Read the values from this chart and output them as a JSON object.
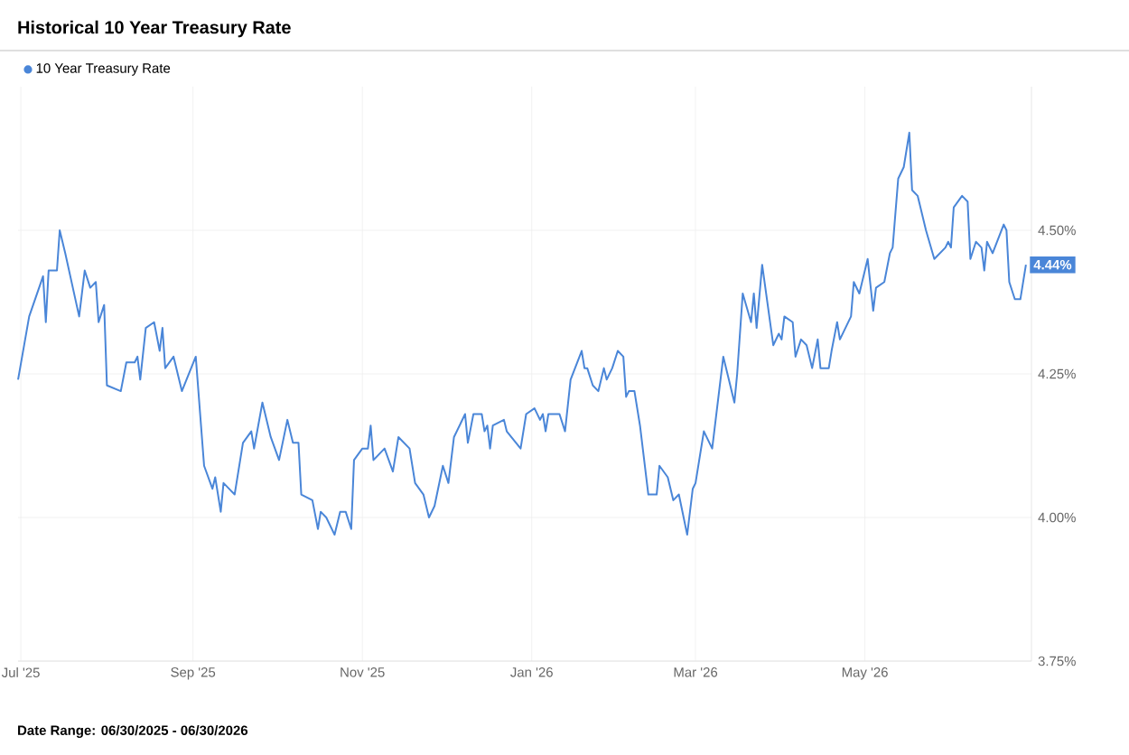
{
  "chart_data": {
    "type": "line",
    "title": "Historical 10 Year Treasury Rate",
    "x": [
      "2025-06-30",
      "2025-07-04",
      "2025-07-09",
      "2025-07-10",
      "2025-07-11",
      "2025-07-14",
      "2025-07-15",
      "2025-07-17",
      "2025-07-22",
      "2025-07-24",
      "2025-07-26",
      "2025-07-28",
      "2025-07-29",
      "2025-07-31",
      "2025-08-01",
      "2025-08-06",
      "2025-08-08",
      "2025-08-11",
      "2025-08-12",
      "2025-08-13",
      "2025-08-15",
      "2025-08-18",
      "2025-08-20",
      "2025-08-21",
      "2025-08-22",
      "2025-08-25",
      "2025-08-28",
      "2025-09-02",
      "2025-09-05",
      "2025-09-08",
      "2025-09-09",
      "2025-09-11",
      "2025-09-12",
      "2025-09-16",
      "2025-09-19",
      "2025-09-22",
      "2025-09-23",
      "2025-09-26",
      "2025-09-29",
      "2025-10-02",
      "2025-10-05",
      "2025-10-07",
      "2025-10-09",
      "2025-10-10",
      "2025-10-14",
      "2025-10-16",
      "2025-10-17",
      "2025-10-19",
      "2025-10-22",
      "2025-10-24",
      "2025-10-26",
      "2025-10-28",
      "2025-10-29",
      "2025-11-01",
      "2025-11-03",
      "2025-11-04",
      "2025-11-05",
      "2025-11-09",
      "2025-11-12",
      "2025-11-14",
      "2025-11-18",
      "2025-11-20",
      "2025-11-23",
      "2025-11-25",
      "2025-11-27",
      "2025-11-30",
      "2025-12-02",
      "2025-12-04",
      "2025-12-08",
      "2025-12-09",
      "2025-12-11",
      "2025-12-14",
      "2025-12-15",
      "2025-12-16",
      "2025-12-17",
      "2025-12-18",
      "2025-12-22",
      "2025-12-23",
      "2025-12-28",
      "2025-12-30",
      "2026-01-02",
      "2026-01-04",
      "2026-01-05",
      "2026-01-06",
      "2026-01-07",
      "2026-01-09",
      "2026-01-11",
      "2026-01-13",
      "2026-01-15",
      "2026-01-19",
      "2026-01-20",
      "2026-01-21",
      "2026-01-23",
      "2026-01-25",
      "2026-01-27",
      "2026-01-28",
      "2026-01-30",
      "2026-02-01",
      "2026-02-03",
      "2026-02-04",
      "2026-02-05",
      "2026-02-07",
      "2026-02-09",
      "2026-02-12",
      "2026-02-15",
      "2026-02-16",
      "2026-02-19",
      "2026-02-21",
      "2026-02-23",
      "2026-02-26",
      "2026-02-28",
      "2026-03-01",
      "2026-03-04",
      "2026-03-07",
      "2026-03-11",
      "2026-03-13",
      "2026-03-15",
      "2026-03-16",
      "2026-03-18",
      "2026-03-21",
      "2026-03-22",
      "2026-03-23",
      "2026-03-25",
      "2026-03-29",
      "2026-03-31",
      "2026-04-01",
      "2026-04-02",
      "2026-04-05",
      "2026-04-06",
      "2026-04-08",
      "2026-04-10",
      "2026-04-12",
      "2026-04-14",
      "2026-04-15",
      "2026-04-18",
      "2026-04-19",
      "2026-04-21",
      "2026-04-22",
      "2026-04-26",
      "2026-04-27",
      "2026-04-29",
      "2026-05-02",
      "2026-05-04",
      "2026-05-05",
      "2026-05-08",
      "2026-05-10",
      "2026-05-11",
      "2026-05-13",
      "2026-05-15",
      "2026-05-17",
      "2026-05-18",
      "2026-05-20",
      "2026-05-23",
      "2026-05-26",
      "2026-05-30",
      "2026-05-31",
      "2026-06-01",
      "2026-06-02",
      "2026-06-05",
      "2026-06-07",
      "2026-06-08",
      "2026-06-10",
      "2026-06-12",
      "2026-06-13",
      "2026-06-14",
      "2026-06-16",
      "2026-06-20",
      "2026-06-21",
      "2026-06-22",
      "2026-06-24",
      "2026-06-26",
      "2026-06-28"
    ],
    "series": [
      {
        "name": "10 Year Treasury Rate",
        "color": "#4a86d8",
        "values": [
          4.24,
          4.35,
          4.42,
          4.34,
          4.43,
          4.43,
          4.5,
          4.46,
          4.35,
          4.43,
          4.4,
          4.41,
          4.34,
          4.37,
          4.23,
          4.22,
          4.27,
          4.27,
          4.28,
          4.24,
          4.33,
          4.34,
          4.29,
          4.33,
          4.26,
          4.28,
          4.22,
          4.28,
          4.09,
          4.05,
          4.07,
          4.01,
          4.06,
          4.04,
          4.13,
          4.15,
          4.12,
          4.2,
          4.14,
          4.1,
          4.17,
          4.13,
          4.13,
          4.04,
          4.03,
          3.98,
          4.01,
          4.0,
          3.97,
          4.01,
          4.01,
          3.98,
          4.1,
          4.12,
          4.12,
          4.16,
          4.1,
          4.12,
          4.08,
          4.14,
          4.12,
          4.06,
          4.04,
          4.0,
          4.02,
          4.09,
          4.06,
          4.14,
          4.18,
          4.13,
          4.18,
          4.18,
          4.15,
          4.16,
          4.12,
          4.16,
          4.17,
          4.15,
          4.12,
          4.18,
          4.19,
          4.17,
          4.18,
          4.15,
          4.18,
          4.18,
          4.18,
          4.15,
          4.24,
          4.29,
          4.26,
          4.26,
          4.23,
          4.22,
          4.26,
          4.24,
          4.26,
          4.29,
          4.28,
          4.21,
          4.22,
          4.22,
          4.16,
          4.04,
          4.04,
          4.09,
          4.07,
          4.03,
          4.04,
          3.97,
          4.05,
          4.06,
          4.15,
          4.12,
          4.28,
          4.24,
          4.2,
          4.25,
          4.39,
          4.34,
          4.39,
          4.33,
          4.44,
          4.3,
          4.32,
          4.31,
          4.35,
          4.34,
          4.28,
          4.31,
          4.3,
          4.26,
          4.31,
          4.26,
          4.26,
          4.29,
          4.34,
          4.31,
          4.35,
          4.41,
          4.39,
          4.45,
          4.36,
          4.4,
          4.41,
          4.46,
          4.47,
          4.59,
          4.61,
          4.67,
          4.57,
          4.56,
          4.5,
          4.45,
          4.47,
          4.48,
          4.47,
          4.54,
          4.56,
          4.55,
          4.45,
          4.48,
          4.47,
          4.43,
          4.48,
          4.46,
          4.51,
          4.5,
          4.41,
          4.38,
          4.38,
          4.44
        ]
      }
    ],
    "xlim": [
      "2025-06-30",
      "2026-06-30"
    ],
    "xticks": [
      {
        "value": "2025-07-01",
        "label": "Jul '25"
      },
      {
        "value": "2025-09-01",
        "label": "Sep '25"
      },
      {
        "value": "2025-11-01",
        "label": "Nov '25"
      },
      {
        "value": "2026-01-01",
        "label": "Jan '26"
      },
      {
        "value": "2026-03-01",
        "label": "Mar '26"
      },
      {
        "value": "2026-05-01",
        "label": "May '26"
      }
    ],
    "ylim": [
      3.75,
      4.75
    ],
    "yticks": [
      {
        "value": 3.75,
        "label": "3.75%"
      },
      {
        "value": 4.0,
        "label": "4.00%"
      },
      {
        "value": 4.25,
        "label": "4.25%"
      },
      {
        "value": 4.5,
        "label": "4.50%"
      }
    ],
    "grid": true,
    "legend": "top left",
    "marker": "none",
    "line_style": "solid",
    "annotations": [
      {
        "text": "4.44%",
        "x": "2026-06-28",
        "y": 4.44
      },
      "Date Range: 06/30/2025 - 06/30/2026"
    ]
  }
}
